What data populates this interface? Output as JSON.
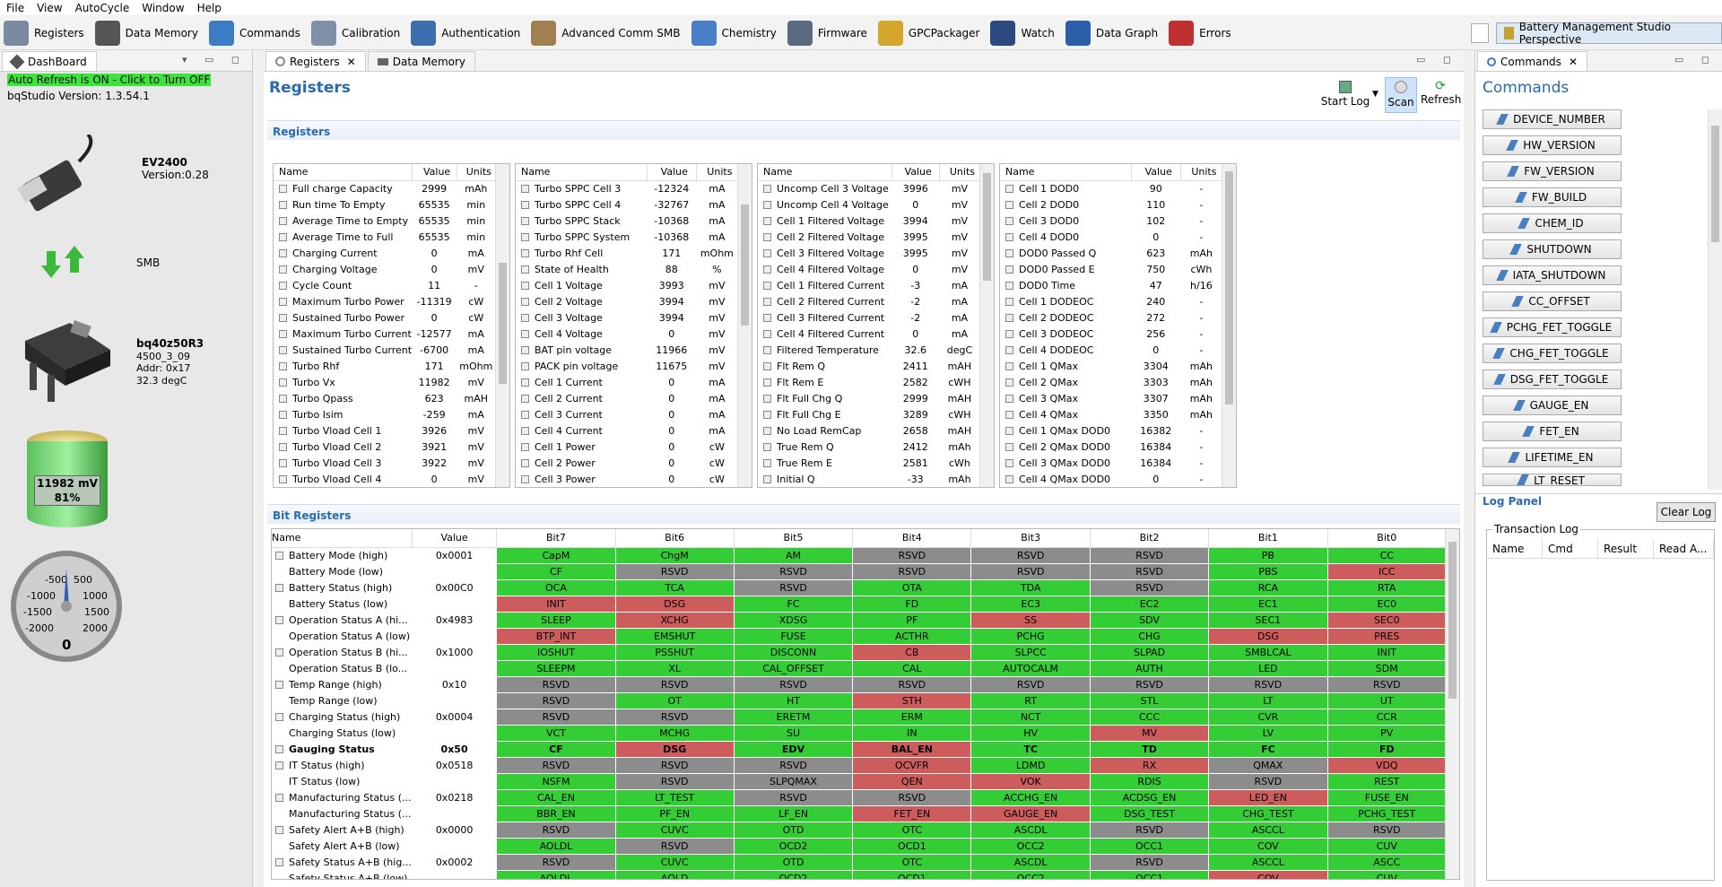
{
  "menu": [
    "File",
    "View",
    "AutoCycle",
    "Window",
    "Help"
  ],
  "toolbar": [
    {
      "label": "Registers",
      "color": "#7a8aa0"
    },
    {
      "label": "Data Memory",
      "color": "#555"
    },
    {
      "label": "Commands",
      "color": "#3a7dc5"
    },
    {
      "label": "Calibration",
      "color": "#8090a8"
    },
    {
      "label": "Authentication",
      "color": "#3d6eb0"
    },
    {
      "label": "Advanced Comm SMB",
      "color": "#a08050"
    },
    {
      "label": "Chemistry",
      "color": "#4a7fc8"
    },
    {
      "label": "Firmware",
      "color": "#5a6a80"
    },
    {
      "label": "GPCPackager",
      "color": "#d4a72c"
    },
    {
      "label": "Watch",
      "color": "#2a4a80"
    },
    {
      "label": "Data Graph",
      "color": "#2a5fa8"
    },
    {
      "label": "Errors",
      "color": "#c03030"
    }
  ],
  "perspective": "Battery Management Studio Perspective",
  "dashboard": {
    "tab": "DashBoard",
    "auto_refresh": "Auto Refresh is ON - Click to Turn OFF",
    "version": "bqStudio Version:  1.3.54.1",
    "adapter": "EV2400",
    "adapter_version": "Version:0.28",
    "protocol": "SMB",
    "device": "bq40z50R3",
    "fw": "4500_3_09",
    "addr": "Addr: 0x17",
    "temp": "32.3 degC",
    "battery_voltage": "11982 mV",
    "battery_soc": "81%",
    "battery_level": 0.81,
    "gauge": {
      "labels": [
        "-500",
        "500",
        "-1000",
        "1000",
        "-1500",
        "1500",
        "-2000",
        "2000",
        "0"
      ],
      "value": "0"
    }
  },
  "tabs": [
    "Registers",
    "Data Memory"
  ],
  "registers_title": "Registers",
  "actions": {
    "start_log": "Start Log",
    "scan": "Scan",
    "refresh": "Refresh"
  },
  "section_registers": "Registers",
  "section_bits": "Bit Registers",
  "col": {
    "name": "Name",
    "value": "Value",
    "units": "Units"
  },
  "tables": [
    [
      [
        "Full charge Capacity",
        "2999",
        "mAh"
      ],
      [
        "Run time To Empty",
        "65535",
        "min"
      ],
      [
        "Average Time to Empty",
        "65535",
        "min"
      ],
      [
        "Average Time to Full",
        "65535",
        "min"
      ],
      [
        "Charging Current",
        "0",
        "mA"
      ],
      [
        "Charging Voltage",
        "0",
        "mV"
      ],
      [
        "Cycle Count",
        "11",
        "-"
      ],
      [
        "Maximum Turbo Power",
        "-11319",
        "cW"
      ],
      [
        "Sustained Turbo Power",
        "0",
        "cW"
      ],
      [
        "Maximum Turbo Current",
        "-12577",
        "mA"
      ],
      [
        "Sustained Turbo Current",
        "-6700",
        "mA"
      ],
      [
        "Turbo Rhf",
        "171",
        "mOhm"
      ],
      [
        "Turbo Vx",
        "11982",
        "mV"
      ],
      [
        "Turbo Qpass",
        "623",
        "mAH"
      ],
      [
        "Turbo Isim",
        "-259",
        "mA"
      ],
      [
        "Turbo Vload Cell 1",
        "3926",
        "mV"
      ],
      [
        "Turbo Vload Cell 2",
        "3921",
        "mV"
      ],
      [
        "Turbo Vload Cell 3",
        "3922",
        "mV"
      ],
      [
        "Turbo Vload Cell 4",
        "0",
        "mV"
      ]
    ],
    [
      [
        "Turbo SPPC Cell 3",
        "-12324",
        "mA"
      ],
      [
        "Turbo SPPC Cell 4",
        "-32767",
        "mA"
      ],
      [
        "Turbo SPPC Stack",
        "-10368",
        "mA"
      ],
      [
        "Turbo SPPC System",
        "-10368",
        "mA"
      ],
      [
        "Turbo Rhf Cell",
        "171",
        "mOhm"
      ],
      [
        "State of Health",
        "88",
        "%"
      ],
      [
        "Cell 1 Voltage",
        "3993",
        "mV"
      ],
      [
        "Cell 2 Voltage",
        "3994",
        "mV"
      ],
      [
        "Cell 3 Voltage",
        "3994",
        "mV"
      ],
      [
        "Cell 4 Voltage",
        "0",
        "mV"
      ],
      [
        "BAT pin voltage",
        "11966",
        "mV"
      ],
      [
        "PACK pin voltage",
        "11675",
        "mV"
      ],
      [
        "Cell 1 Current",
        "0",
        "mA"
      ],
      [
        "Cell 2 Current",
        "0",
        "mA"
      ],
      [
        "Cell 3 Current",
        "0",
        "mA"
      ],
      [
        "Cell 4 Current",
        "0",
        "mA"
      ],
      [
        "Cell 1 Power",
        "0",
        "cW"
      ],
      [
        "Cell 2 Power",
        "0",
        "cW"
      ],
      [
        "Cell 3 Power",
        "0",
        "cW"
      ]
    ],
    [
      [
        "Uncomp Cell 3 Voltage",
        "3996",
        "mV"
      ],
      [
        "Uncomp Cell 4 Voltage",
        "0",
        "mV"
      ],
      [
        "Cell 1 Filtered Voltage",
        "3994",
        "mV"
      ],
      [
        "Cell 2 Filtered Voltage",
        "3995",
        "mV"
      ],
      [
        "Cell 3 Filtered Voltage",
        "3995",
        "mV"
      ],
      [
        "Cell 4 Filtered Voltage",
        "0",
        "mV"
      ],
      [
        "Cell 1 Filtered Current",
        "-3",
        "mA"
      ],
      [
        "Cell 2 Filtered Current",
        "-2",
        "mA"
      ],
      [
        "Cell 3 Filtered Current",
        "-2",
        "mA"
      ],
      [
        "Cell 4 Filtered Current",
        "0",
        "mA"
      ],
      [
        "Filtered Temperature",
        "32.6",
        "degC"
      ],
      [
        "Flt Rem Q",
        "2411",
        "mAH"
      ],
      [
        "Flt Rem E",
        "2582",
        "cWH"
      ],
      [
        "Flt Full Chg Q",
        "2999",
        "mAH"
      ],
      [
        "Flt Full Chg E",
        "3289",
        "cWH"
      ],
      [
        "No Load RemCap",
        "2658",
        "mAH"
      ],
      [
        "True Rem Q",
        "2412",
        "mAh"
      ],
      [
        "True Rem E",
        "2581",
        "cWh"
      ],
      [
        "Initial Q",
        "-33",
        "mAh"
      ]
    ],
    [
      [
        "Cell 1 DOD0",
        "90",
        "-"
      ],
      [
        "Cell 2 DOD0",
        "110",
        "-"
      ],
      [
        "Cell 3 DOD0",
        "102",
        "-"
      ],
      [
        "Cell 4 DOD0",
        "0",
        "-"
      ],
      [
        "DOD0 Passed Q",
        "623",
        "mAh"
      ],
      [
        "DOD0 Passed E",
        "750",
        "cWh"
      ],
      [
        "DOD0 Time",
        "47",
        "h/16"
      ],
      [
        "Cell 1 DODEOC",
        "240",
        "-"
      ],
      [
        "Cell 2 DODEOC",
        "272",
        "-"
      ],
      [
        "Cell 3 DODEOC",
        "256",
        "-"
      ],
      [
        "Cell 4 DODEOC",
        "0",
        "-"
      ],
      [
        "Cell 1 QMax",
        "3304",
        "mAh"
      ],
      [
        "Cell 2 QMax",
        "3303",
        "mAh"
      ],
      [
        "Cell 3 QMax",
        "3307",
        "mAh"
      ],
      [
        "Cell 4 QMax",
        "3350",
        "mAh"
      ],
      [
        "Cell 1 QMax DOD0",
        "16382",
        "-"
      ],
      [
        "Cell 2 QMax DOD0",
        "16384",
        "-"
      ],
      [
        "Cell 3 QMax DOD0",
        "16384",
        "-"
      ],
      [
        "Cell 4 QMax DOD0",
        "0",
        "-"
      ]
    ]
  ],
  "bit_headers": [
    "Name",
    "Value",
    "Bit7",
    "Bit6",
    "Bit5",
    "Bit4",
    "Bit3",
    "Bit2",
    "Bit1",
    "Bit0"
  ],
  "bit_rows": [
    {
      "name": "Battery Mode (high)",
      "value": "0x0001",
      "lock": "edit",
      "bits": [
        [
          "CapM",
          "g"
        ],
        [
          "ChgM",
          "g"
        ],
        [
          "AM",
          "g"
        ],
        [
          "RSVD",
          "r"
        ],
        [
          "RSVD",
          "r"
        ],
        [
          "RSVD",
          "r"
        ],
        [
          "PB",
          "g"
        ],
        [
          "CC",
          "g"
        ]
      ]
    },
    {
      "name": "Battery Mode (low)",
      "value": "",
      "bits": [
        [
          "CF",
          "g"
        ],
        [
          "RSVD",
          "r"
        ],
        [
          "RSVD",
          "r"
        ],
        [
          "RSVD",
          "r"
        ],
        [
          "RSVD",
          "r"
        ],
        [
          "RSVD",
          "r"
        ],
        [
          "PBS",
          "g"
        ],
        [
          "ICC",
          "x"
        ]
      ]
    },
    {
      "name": "Battery Status (high)",
      "value": "0x00C0",
      "lock": "y",
      "bits": [
        [
          "OCA",
          "g"
        ],
        [
          "TCA",
          "g"
        ],
        [
          "RSVD",
          "r"
        ],
        [
          "OTA",
          "g"
        ],
        [
          "TDA",
          "g"
        ],
        [
          "RSVD",
          "r"
        ],
        [
          "RCA",
          "g"
        ],
        [
          "RTA",
          "g"
        ]
      ]
    },
    {
      "name": "Battery Status (low)",
      "value": "",
      "bits": [
        [
          "INIT",
          "x"
        ],
        [
          "DSG",
          "x"
        ],
        [
          "FC",
          "g"
        ],
        [
          "FD",
          "g"
        ],
        [
          "EC3",
          "g"
        ],
        [
          "EC2",
          "g"
        ],
        [
          "EC1",
          "g"
        ],
        [
          "EC0",
          "g"
        ]
      ]
    },
    {
      "name": "Operation Status A (hi...",
      "value": "0x4983",
      "lock": "y",
      "bits": [
        [
          "SLEEP",
          "g"
        ],
        [
          "XCHG",
          "x"
        ],
        [
          "XDSG",
          "g"
        ],
        [
          "PF",
          "g"
        ],
        [
          "SS",
          "x"
        ],
        [
          "SDV",
          "g"
        ],
        [
          "SEC1",
          "g"
        ],
        [
          "SEC0",
          "x"
        ]
      ]
    },
    {
      "name": "Operation Status A (low)",
      "value": "",
      "bits": [
        [
          "BTP_INT",
          "x"
        ],
        [
          "EMSHUT",
          "g"
        ],
        [
          "FUSE",
          "g"
        ],
        [
          "ACTHR",
          "g"
        ],
        [
          "PCHG",
          "g"
        ],
        [
          "CHG",
          "g"
        ],
        [
          "DSG",
          "x"
        ],
        [
          "PRES",
          "x"
        ]
      ]
    },
    {
      "name": "Operation Status B (hi...",
      "value": "0x1000",
      "lock": "y",
      "bits": [
        [
          "IOSHUT",
          "g"
        ],
        [
          "PSSHUT",
          "g"
        ],
        [
          "DISCONN",
          "g"
        ],
        [
          "CB",
          "x"
        ],
        [
          "SLPCC",
          "g"
        ],
        [
          "SLPAD",
          "g"
        ],
        [
          "SMBLCAL",
          "g"
        ],
        [
          "INIT",
          "g"
        ]
      ]
    },
    {
      "name": "Operation Status B (lo...",
      "value": "",
      "bits": [
        [
          "SLEEPM",
          "g"
        ],
        [
          "XL",
          "g"
        ],
        [
          "CAL_OFFSET",
          "g"
        ],
        [
          "CAL",
          "g"
        ],
        [
          "AUTOCALM",
          "g"
        ],
        [
          "AUTH",
          "g"
        ],
        [
          "LED",
          "g"
        ],
        [
          "SDM",
          "g"
        ]
      ]
    },
    {
      "name": "Temp Range (high)",
      "value": "0x10",
      "lock": "y",
      "bits": [
        [
          "RSVD",
          "r"
        ],
        [
          "RSVD",
          "r"
        ],
        [
          "RSVD",
          "r"
        ],
        [
          "RSVD",
          "r"
        ],
        [
          "RSVD",
          "r"
        ],
        [
          "RSVD",
          "r"
        ],
        [
          "RSVD",
          "r"
        ],
        [
          "RSVD",
          "r"
        ]
      ]
    },
    {
      "name": "Temp Range (low)",
      "value": "",
      "bits": [
        [
          "RSVD",
          "r"
        ],
        [
          "OT",
          "g"
        ],
        [
          "HT",
          "g"
        ],
        [
          "STH",
          "x"
        ],
        [
          "RT",
          "g"
        ],
        [
          "STL",
          "g"
        ],
        [
          "LT",
          "g"
        ],
        [
          "UT",
          "g"
        ]
      ]
    },
    {
      "name": "Charging Status (high)",
      "value": "0x0004",
      "lock": "y",
      "bits": [
        [
          "RSVD",
          "r"
        ],
        [
          "RSVD",
          "r"
        ],
        [
          "ERETM",
          "g"
        ],
        [
          "ERM",
          "g"
        ],
        [
          "NCT",
          "g"
        ],
        [
          "CCC",
          "g"
        ],
        [
          "CVR",
          "g"
        ],
        [
          "CCR",
          "g"
        ]
      ]
    },
    {
      "name": "Charging Status (low)",
      "value": "",
      "bits": [
        [
          "VCT",
          "g"
        ],
        [
          "MCHG",
          "g"
        ],
        [
          "SU",
          "g"
        ],
        [
          "IN",
          "g"
        ],
        [
          "HV",
          "g"
        ],
        [
          "MV",
          "x"
        ],
        [
          "LV",
          "g"
        ],
        [
          "PV",
          "g"
        ]
      ]
    },
    {
      "name": "Gauging Status",
      "value": "0x50",
      "lock": "y",
      "bold": true,
      "bits": [
        [
          "CF",
          "g"
        ],
        [
          "DSG",
          "x"
        ],
        [
          "EDV",
          "g"
        ],
        [
          "BAL_EN",
          "x"
        ],
        [
          "TC",
          "g"
        ],
        [
          "TD",
          "g"
        ],
        [
          "FC",
          "g"
        ],
        [
          "FD",
          "g"
        ]
      ]
    },
    {
      "name": "IT Status (high)",
      "value": "0x0518",
      "lock": "y",
      "bits": [
        [
          "RSVD",
          "r"
        ],
        [
          "RSVD",
          "r"
        ],
        [
          "RSVD",
          "r"
        ],
        [
          "OCVFR",
          "x"
        ],
        [
          "LDMD",
          "g"
        ],
        [
          "RX",
          "x"
        ],
        [
          "QMAX",
          "r"
        ],
        [
          "VDQ",
          "x"
        ]
      ]
    },
    {
      "name": "IT Status (low)",
      "value": "",
      "bits": [
        [
          "NSFM",
          "g"
        ],
        [
          "RSVD",
          "r"
        ],
        [
          "SLPQMAX",
          "r"
        ],
        [
          "QEN",
          "x"
        ],
        [
          "VOK",
          "x"
        ],
        [
          "RDIS",
          "g"
        ],
        [
          "RSVD",
          "r"
        ],
        [
          "REST",
          "g"
        ]
      ]
    },
    {
      "name": "Manufacturing Status (...",
      "value": "0x0218",
      "lock": "y",
      "bits": [
        [
          "CAL_EN",
          "g"
        ],
        [
          "LT_TEST",
          "g"
        ],
        [
          "RSVD",
          "r"
        ],
        [
          "RSVD",
          "r"
        ],
        [
          "ACCHG_EN",
          "g"
        ],
        [
          "ACDSG_EN",
          "g"
        ],
        [
          "LED_EN",
          "x"
        ],
        [
          "FUSE_EN",
          "g"
        ]
      ]
    },
    {
      "name": "Manufacturing Status (...",
      "value": "",
      "bits": [
        [
          "BBR_EN",
          "g"
        ],
        [
          "PF_EN",
          "g"
        ],
        [
          "LF_EN",
          "g"
        ],
        [
          "FET_EN",
          "x"
        ],
        [
          "GAUGE_EN",
          "x"
        ],
        [
          "DSG_TEST",
          "g"
        ],
        [
          "CHG_TEST",
          "g"
        ],
        [
          "PCHG_TEST",
          "g"
        ]
      ]
    },
    {
      "name": "Safety Alert A+B (high)",
      "value": "0x0000",
      "lock": "y",
      "bits": [
        [
          "RSVD",
          "r"
        ],
        [
          "CUVC",
          "g"
        ],
        [
          "OTD",
          "g"
        ],
        [
          "OTC",
          "g"
        ],
        [
          "ASCDL",
          "g"
        ],
        [
          "RSVD",
          "r"
        ],
        [
          "ASCCL",
          "g"
        ],
        [
          "RSVD",
          "r"
        ]
      ]
    },
    {
      "name": "Safety Alert A+B (low)",
      "value": "",
      "bits": [
        [
          "AOLDL",
          "g"
        ],
        [
          "RSVD",
          "r"
        ],
        [
          "OCD2",
          "g"
        ],
        [
          "OCD1",
          "g"
        ],
        [
          "OCC2",
          "g"
        ],
        [
          "OCC1",
          "g"
        ],
        [
          "COV",
          "g"
        ],
        [
          "CUV",
          "g"
        ]
      ]
    },
    {
      "name": "Safety Status A+B (hig...",
      "value": "0x0002",
      "lock": "y",
      "bits": [
        [
          "RSVD",
          "r"
        ],
        [
          "CUVC",
          "g"
        ],
        [
          "OTD",
          "g"
        ],
        [
          "OTC",
          "g"
        ],
        [
          "ASCDL",
          "g"
        ],
        [
          "RSVD",
          "r"
        ],
        [
          "ASCCL",
          "g"
        ],
        [
          "ASCC",
          "g"
        ]
      ]
    },
    {
      "name": "Safety Status A+B (low)",
      "value": "",
      "bits": [
        [
          "AOLDL",
          "g"
        ],
        [
          "AOLD",
          "g"
        ],
        [
          "OCD2",
          "g"
        ],
        [
          "OCD1",
          "g"
        ],
        [
          "OCC2",
          "g"
        ],
        [
          "OCC1",
          "g"
        ],
        [
          "COV",
          "x"
        ],
        [
          "CUV",
          "g"
        ]
      ]
    }
  ],
  "commands_tab": "Commands",
  "commands_title": "Commands",
  "commands": [
    "DEVICE_NUMBER",
    "HW_VERSION",
    "FW_VERSION",
    "FW_BUILD",
    "CHEM_ID",
    "SHUTDOWN",
    "IATA_SHUTDOWN",
    "CC_OFFSET",
    "PCHG_FET_TOGGLE",
    "CHG_FET_TOGGLE",
    "DSG_FET_TOGGLE",
    "GAUGE_EN",
    "FET_EN",
    "LIFETIME_EN",
    "LT_RESET"
  ],
  "log_panel": "Log Panel",
  "clear_log": "Clear Log",
  "transaction_log": "Transaction Log",
  "log_cols": [
    "Name",
    "Cmd",
    "Result",
    "Read A..."
  ]
}
